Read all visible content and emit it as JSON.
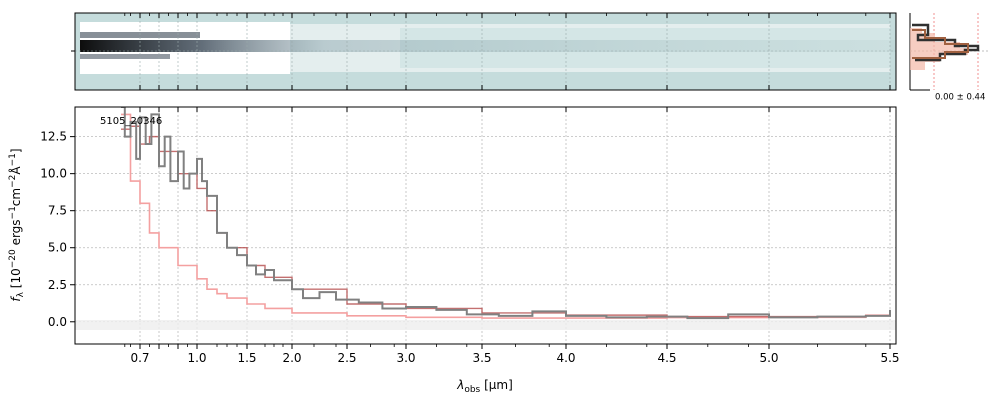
{
  "figure": {
    "object_label": "5105_20346",
    "profile_annotation": "0.00 ± 0.44"
  },
  "chart_data": [
    {
      "type": "heatmap",
      "panel": "2D spectrum",
      "colormap": "bone_r",
      "background_color": "#c5dcdc",
      "x_axis": "shared with spectrum panel (lambda_obs)",
      "grid": true
    },
    {
      "type": "line",
      "panel": "1D spectrum",
      "xlabel": "λ_obs [μm]",
      "ylabel": "f_λ [10^-20 ergs^-1 cm^-2 Å^-1]",
      "x_ticks": [
        0.7,
        0.8,
        0.9,
        1.0,
        1.5,
        2.0,
        2.5,
        3.0,
        3.5,
        4.0,
        4.5,
        5.0,
        5.5
      ],
      "x_tick_labels": [
        "0.7",
        "",
        "",
        "1.0",
        "1.5",
        "2.0",
        "2.5",
        "3.0",
        "3.5",
        "4.0",
        "4.5",
        "5.0",
        "5.5"
      ],
      "xlim": [
        0.58,
        5.53
      ],
      "y_ticks": [
        0.0,
        2.5,
        5.0,
        7.5,
        10.0,
        12.5
      ],
      "y_tick_labels": [
        "0.0",
        "2.5",
        "5.0",
        "7.5",
        "10.0",
        "12.5"
      ],
      "ylim": [
        -1.5,
        14.5
      ],
      "grid": true,
      "series": [
        {
          "role": "flux",
          "color": "#808080",
          "x": [
            0.6,
            0.62,
            0.65,
            0.68,
            0.7,
            0.73,
            0.76,
            0.8,
            0.83,
            0.86,
            0.9,
            0.93,
            0.96,
            1.0,
            1.05,
            1.1,
            1.2,
            1.3,
            1.4,
            1.5,
            1.6,
            1.7,
            1.8,
            2.0,
            2.1,
            2.25,
            2.4,
            2.6,
            2.8,
            3.0,
            3.2,
            3.4,
            3.6,
            3.8,
            4.0,
            4.2,
            4.4,
            4.6,
            4.8,
            5.0,
            5.2,
            5.4,
            5.5
          ],
          "y": [
            14.5,
            12.5,
            13.5,
            11.0,
            13.8,
            12.0,
            14.0,
            10.5,
            12.5,
            9.5,
            11.5,
            9.0,
            10.0,
            11.0,
            9.5,
            8.5,
            6.0,
            5.0,
            4.5,
            3.8,
            3.2,
            3.5,
            2.8,
            2.2,
            1.6,
            2.0,
            1.5,
            1.3,
            0.9,
            1.0,
            0.8,
            0.5,
            0.4,
            0.7,
            0.4,
            0.3,
            0.35,
            0.25,
            0.5,
            0.3,
            0.35,
            0.4,
            0.8
          ]
        },
        {
          "role": "error",
          "color": "#f4a0a0",
          "x": [
            0.6,
            0.65,
            0.7,
            0.75,
            0.8,
            0.9,
            1.0,
            1.1,
            1.2,
            1.3,
            1.5,
            1.7,
            2.0,
            2.5,
            3.0,
            3.5,
            4.0,
            4.5,
            5.0,
            5.4,
            5.5
          ],
          "y": [
            14.0,
            9.5,
            8.0,
            6.0,
            5.0,
            3.8,
            2.9,
            2.2,
            1.9,
            1.6,
            1.2,
            0.9,
            0.6,
            0.4,
            0.3,
            0.25,
            0.25,
            0.28,
            0.3,
            0.45,
            0.6
          ]
        },
        {
          "role": "model",
          "color": "#b04040",
          "x": [
            0.6,
            0.65,
            0.7,
            0.75,
            0.8,
            0.85,
            0.9,
            1.0,
            1.1,
            1.2,
            1.3,
            1.5,
            1.7,
            2.0,
            2.5,
            3.0,
            3.5,
            4.0,
            4.5,
            5.0,
            5.4,
            5.5
          ],
          "y": [
            13.0,
            13.2,
            12.0,
            12.5,
            11.5,
            11.5,
            10.0,
            9.0,
            7.5,
            6.0,
            5.0,
            3.8,
            3.0,
            2.2,
            1.2,
            0.9,
            0.6,
            0.45,
            0.35,
            0.35,
            0.4,
            0.6
          ]
        }
      ]
    },
    {
      "type": "line",
      "panel": "spatial profile",
      "series": [
        {
          "role": "profile-data",
          "color": "#000000"
        },
        {
          "role": "profile-model",
          "color": "#a06040"
        },
        {
          "role": "profile-fill",
          "color": "#f4b8a8"
        }
      ]
    }
  ]
}
